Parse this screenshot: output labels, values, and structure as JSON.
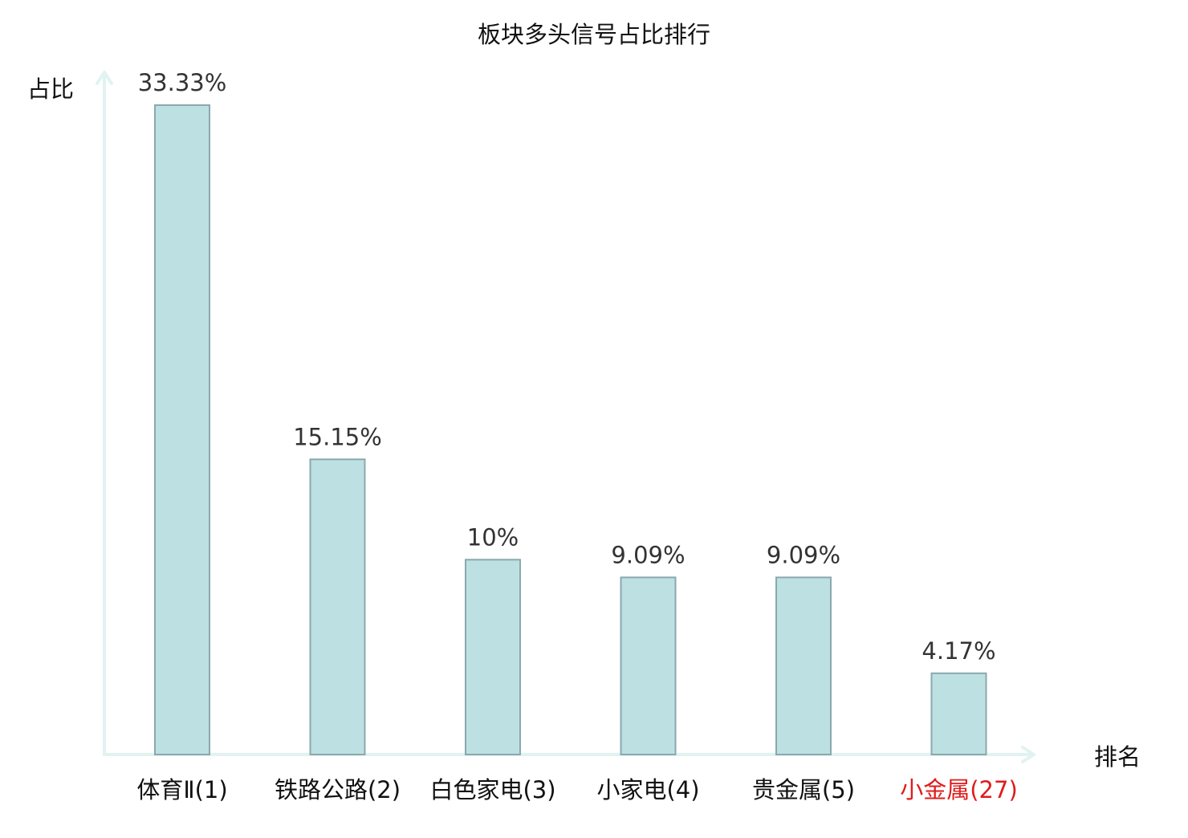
{
  "chart_data": {
    "type": "bar",
    "title": "板块多头信号占比排行",
    "ylabel": "占比",
    "xlabel": "排名",
    "categories": [
      "体育Ⅱ(1)",
      "铁路公路(2)",
      "白色家电(3)",
      "小家电(4)",
      "贵金属(5)",
      "小金属(27)"
    ],
    "values": [
      33.33,
      15.15,
      10,
      9.09,
      9.09,
      4.17
    ],
    "value_labels": [
      "33.33%",
      "15.15%",
      "10%",
      "9.09%",
      "9.09%",
      "4.17%"
    ],
    "highlight_index": 5,
    "ylim": [
      0,
      33.33
    ],
    "grid": false,
    "colors": {
      "bar_fill": "#bde0e3",
      "bar_stroke": "#8aa9ac",
      "axis": "#e1f3f1",
      "text": "#111111",
      "value_text": "#333333",
      "highlight": "#e01b1b"
    }
  }
}
